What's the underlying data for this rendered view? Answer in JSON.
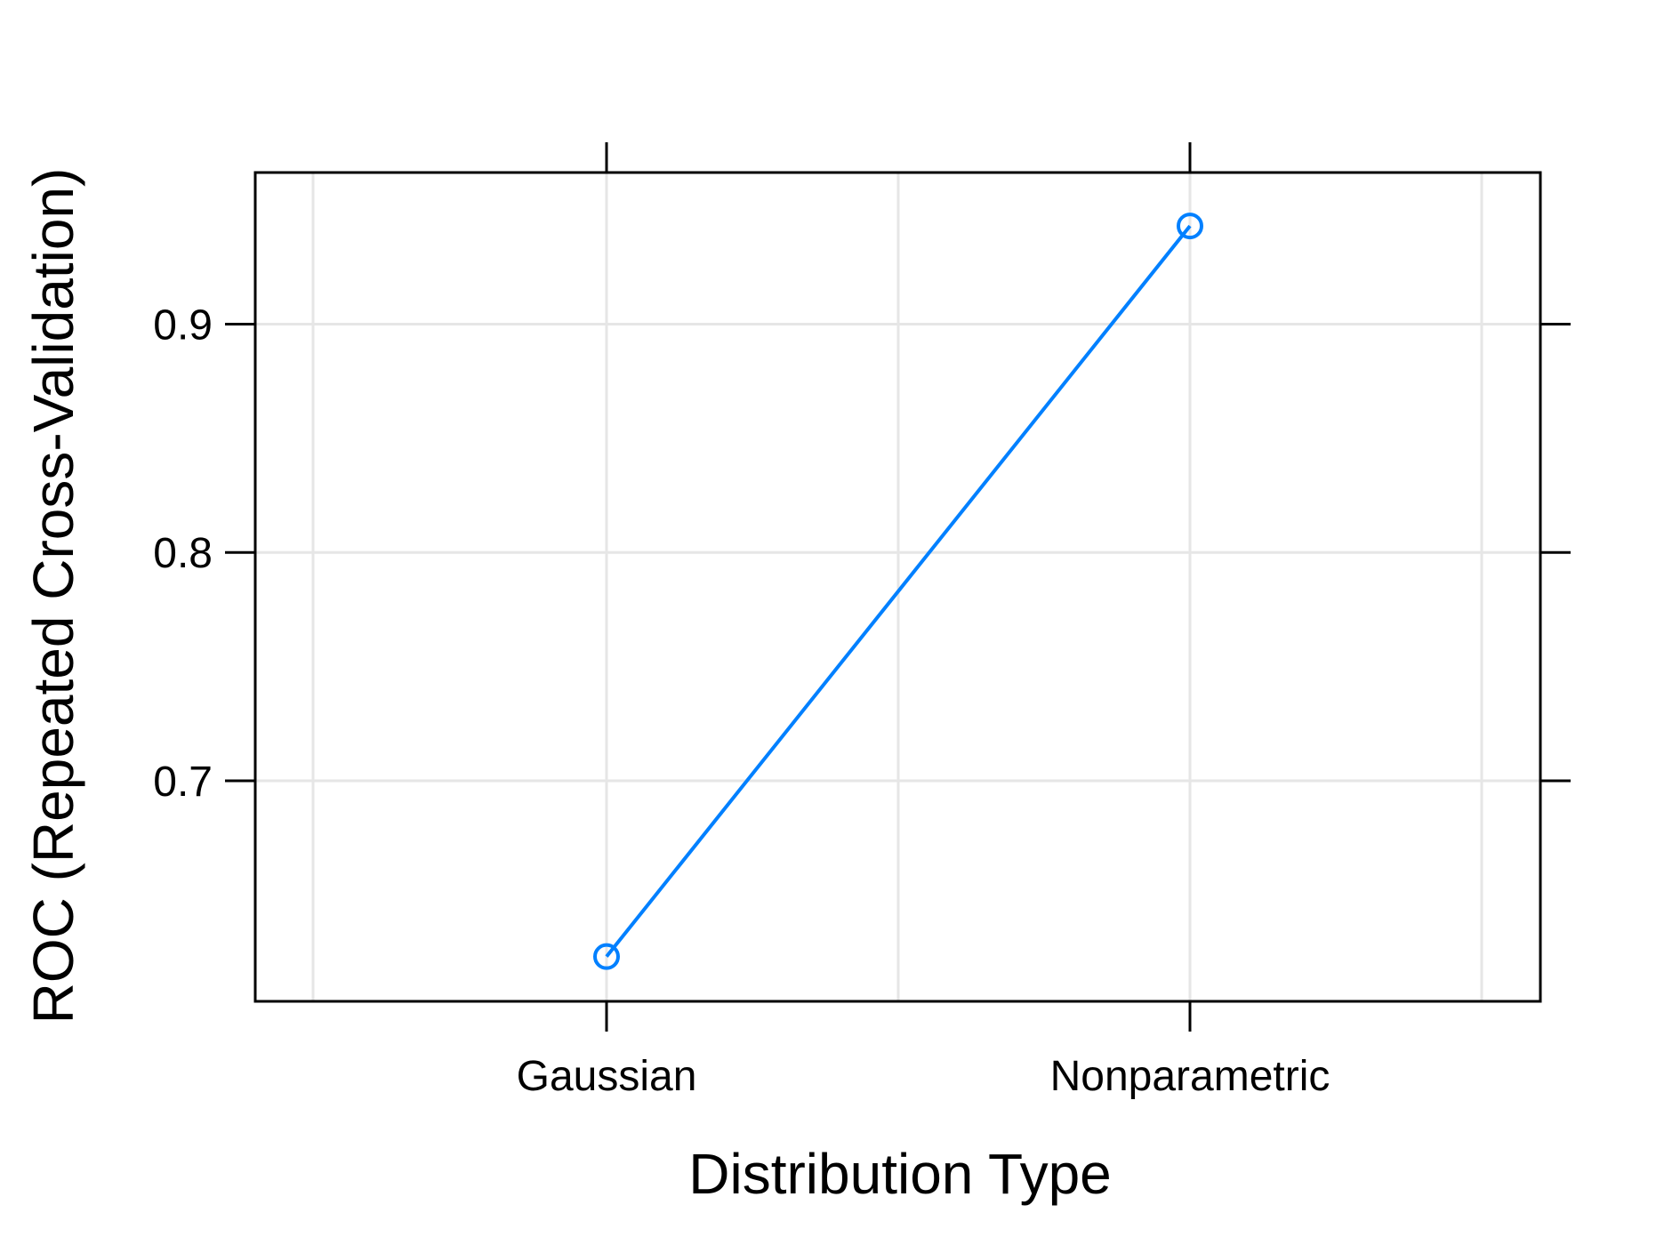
{
  "chart_data": {
    "type": "line",
    "categories": [
      "Gaussian",
      "Nonparametric"
    ],
    "series": [
      {
        "values": [
          0.623,
          0.943
        ]
      }
    ],
    "xlabel": "Distribution Type",
    "ylabel": "ROC (Repeated Cross-Validation)",
    "ylim": [
      0.6034,
      0.9664
    ],
    "yticks": [
      "0.7",
      "0.8",
      "0.9"
    ],
    "grid": true,
    "series_color": "#0080ff",
    "grid_color": "#e6e6e6",
    "axis_color": "#000000"
  }
}
